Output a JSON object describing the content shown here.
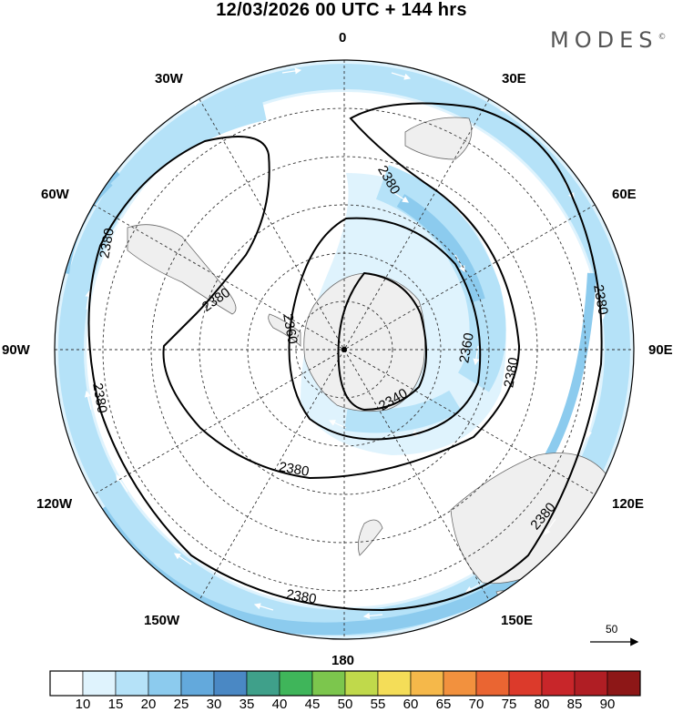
{
  "header": {
    "title": "12/03/2026  00 UTC  + 144 hrs",
    "brand": "MODES",
    "brand_mark": "©"
  },
  "map": {
    "projection": "south-polar-stereographic",
    "longitude_labels": {
      "top": "0",
      "top_left": "30W",
      "top_right": "30E",
      "upper_left": "60W",
      "upper_right": "60E",
      "left": "90W",
      "right": "90E",
      "lower_left": "120W",
      "lower_right": "120E",
      "bottom_left": "150W",
      "bottom_right": "150E",
      "bottom": "180"
    },
    "contour_units": "gpm",
    "contour_labels": [
      "2380",
      "2380",
      "2380",
      "2380",
      "2380",
      "2380",
      "2380",
      "2380",
      "2380",
      "2360",
      "2360",
      "2340"
    ]
  },
  "reference_vector": {
    "label": "50"
  },
  "colorbar": {
    "labels": [
      "10",
      "15",
      "20",
      "25",
      "30",
      "35",
      "40",
      "45",
      "50",
      "55",
      "60",
      "65",
      "70",
      "75",
      "80",
      "85",
      "90"
    ],
    "colors": [
      "#ffffff",
      "#dff3fd",
      "#b5e2f8",
      "#8ccbee",
      "#63a9dc",
      "#4a88c4",
      "#3fa08a",
      "#3fb55a",
      "#7cc64d",
      "#c0d94b",
      "#f4dd58",
      "#f5b84a",
      "#f2913e",
      "#ea6532",
      "#dc3a2b",
      "#c8262a",
      "#b01e24",
      "#8d1717"
    ]
  }
}
